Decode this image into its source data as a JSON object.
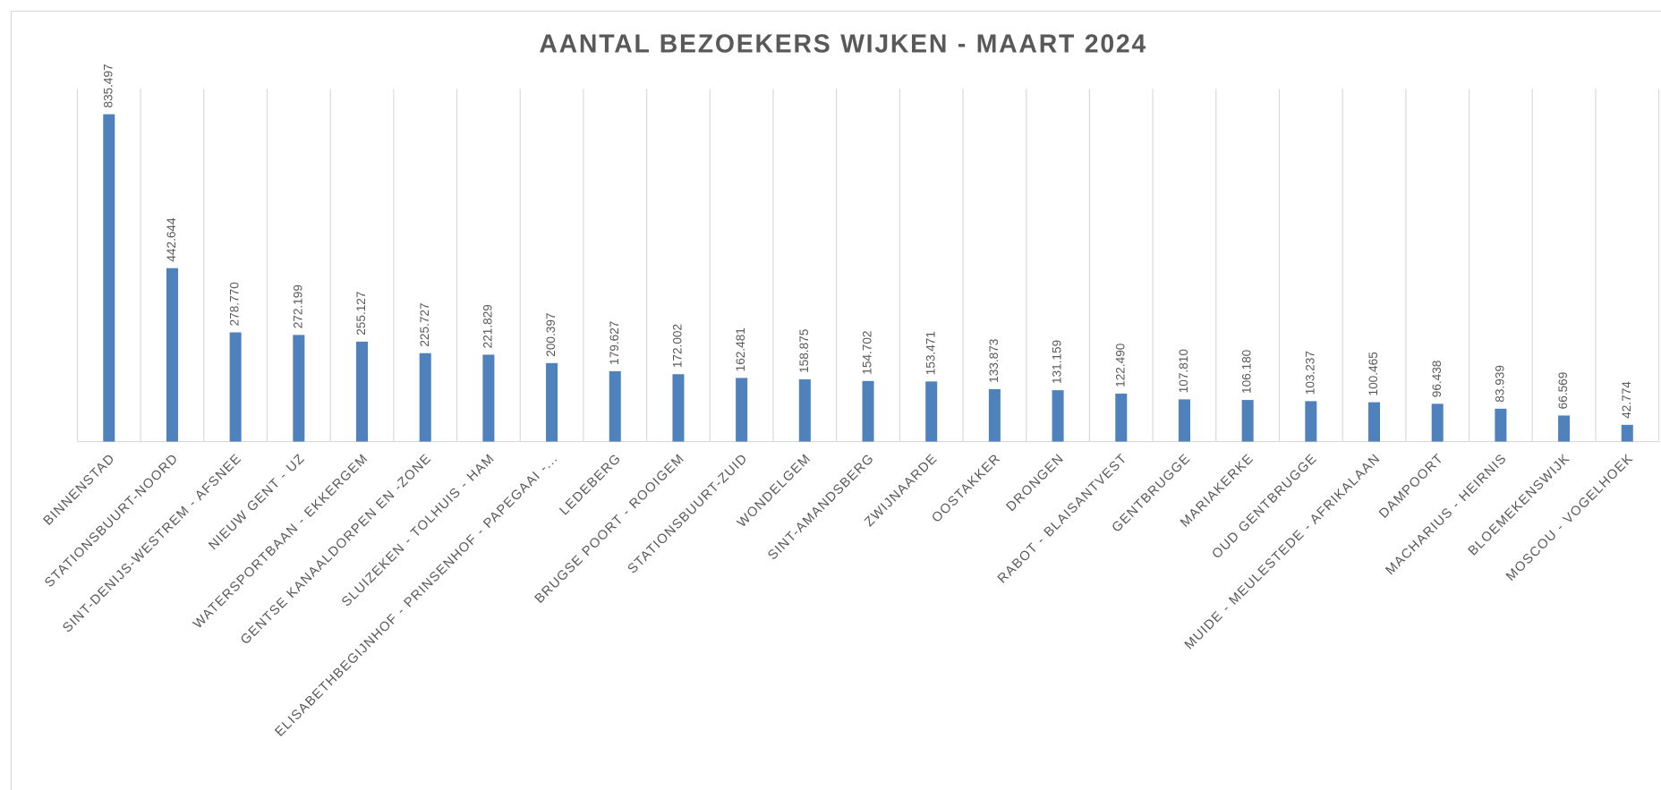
{
  "chart_data": {
    "type": "bar",
    "title": "AANTAL BEZOEKERS WIJKEN - MAART 2024",
    "categories": [
      "BINNENSTAD",
      "STATIONSBUURT-NOORD",
      "SINT-DENIJS-WESTREM - AFSNEE",
      "NIEUW GENT - UZ",
      "WATERSPORTBAAN - EKKERGEM",
      "GENTSE KANAALDORPEN EN -ZONE",
      "SLUIZEKEN - TOLHUIS - HAM",
      "ELISABETHBEGIJNHOF - PRINSENHOF - PAPEGAAI -...",
      "LEDEBERG",
      "BRUGSE POORT - ROOIGEM",
      "STATIONSBUURT-ZUID",
      "WONDELGEM",
      "SINT-AMANDSBERG",
      "ZWIJNAARDE",
      "OOSTAKKER",
      "DRONGEN",
      "RABOT - BLAISANTVEST",
      "GENTBRUGGE",
      "MARIAKERKE",
      "OUD GENTBRUGGE",
      "MUIDE - MEULESTEDE - AFRIKALAAN",
      "DAMPOORT",
      "MACHARIUS - HEIRNIS",
      "BLOEMEKENSWIJK",
      "MOSCOU - VOGELHOEK"
    ],
    "values": [
      835497,
      442644,
      278770,
      272199,
      255127,
      225727,
      221829,
      200397,
      179627,
      172002,
      162481,
      158875,
      154702,
      153471,
      133873,
      131159,
      122490,
      107810,
      106180,
      103237,
      100465,
      96438,
      83939,
      66569,
      42774
    ],
    "value_labels": [
      "835.497",
      "442.644",
      "278.770",
      "272.199",
      "255.127",
      "225.727",
      "221.829",
      "200.397",
      "179.627",
      "172.002",
      "162.481",
      "158.875",
      "154.702",
      "153.471",
      "133.873",
      "131.159",
      "122.490",
      "107.810",
      "106.180",
      "103.237",
      "100.465",
      "96.438",
      "83.939",
      "66.569",
      "42.774"
    ],
    "color": "#4f81bd",
    "ylim": [
      0,
      900000
    ]
  }
}
